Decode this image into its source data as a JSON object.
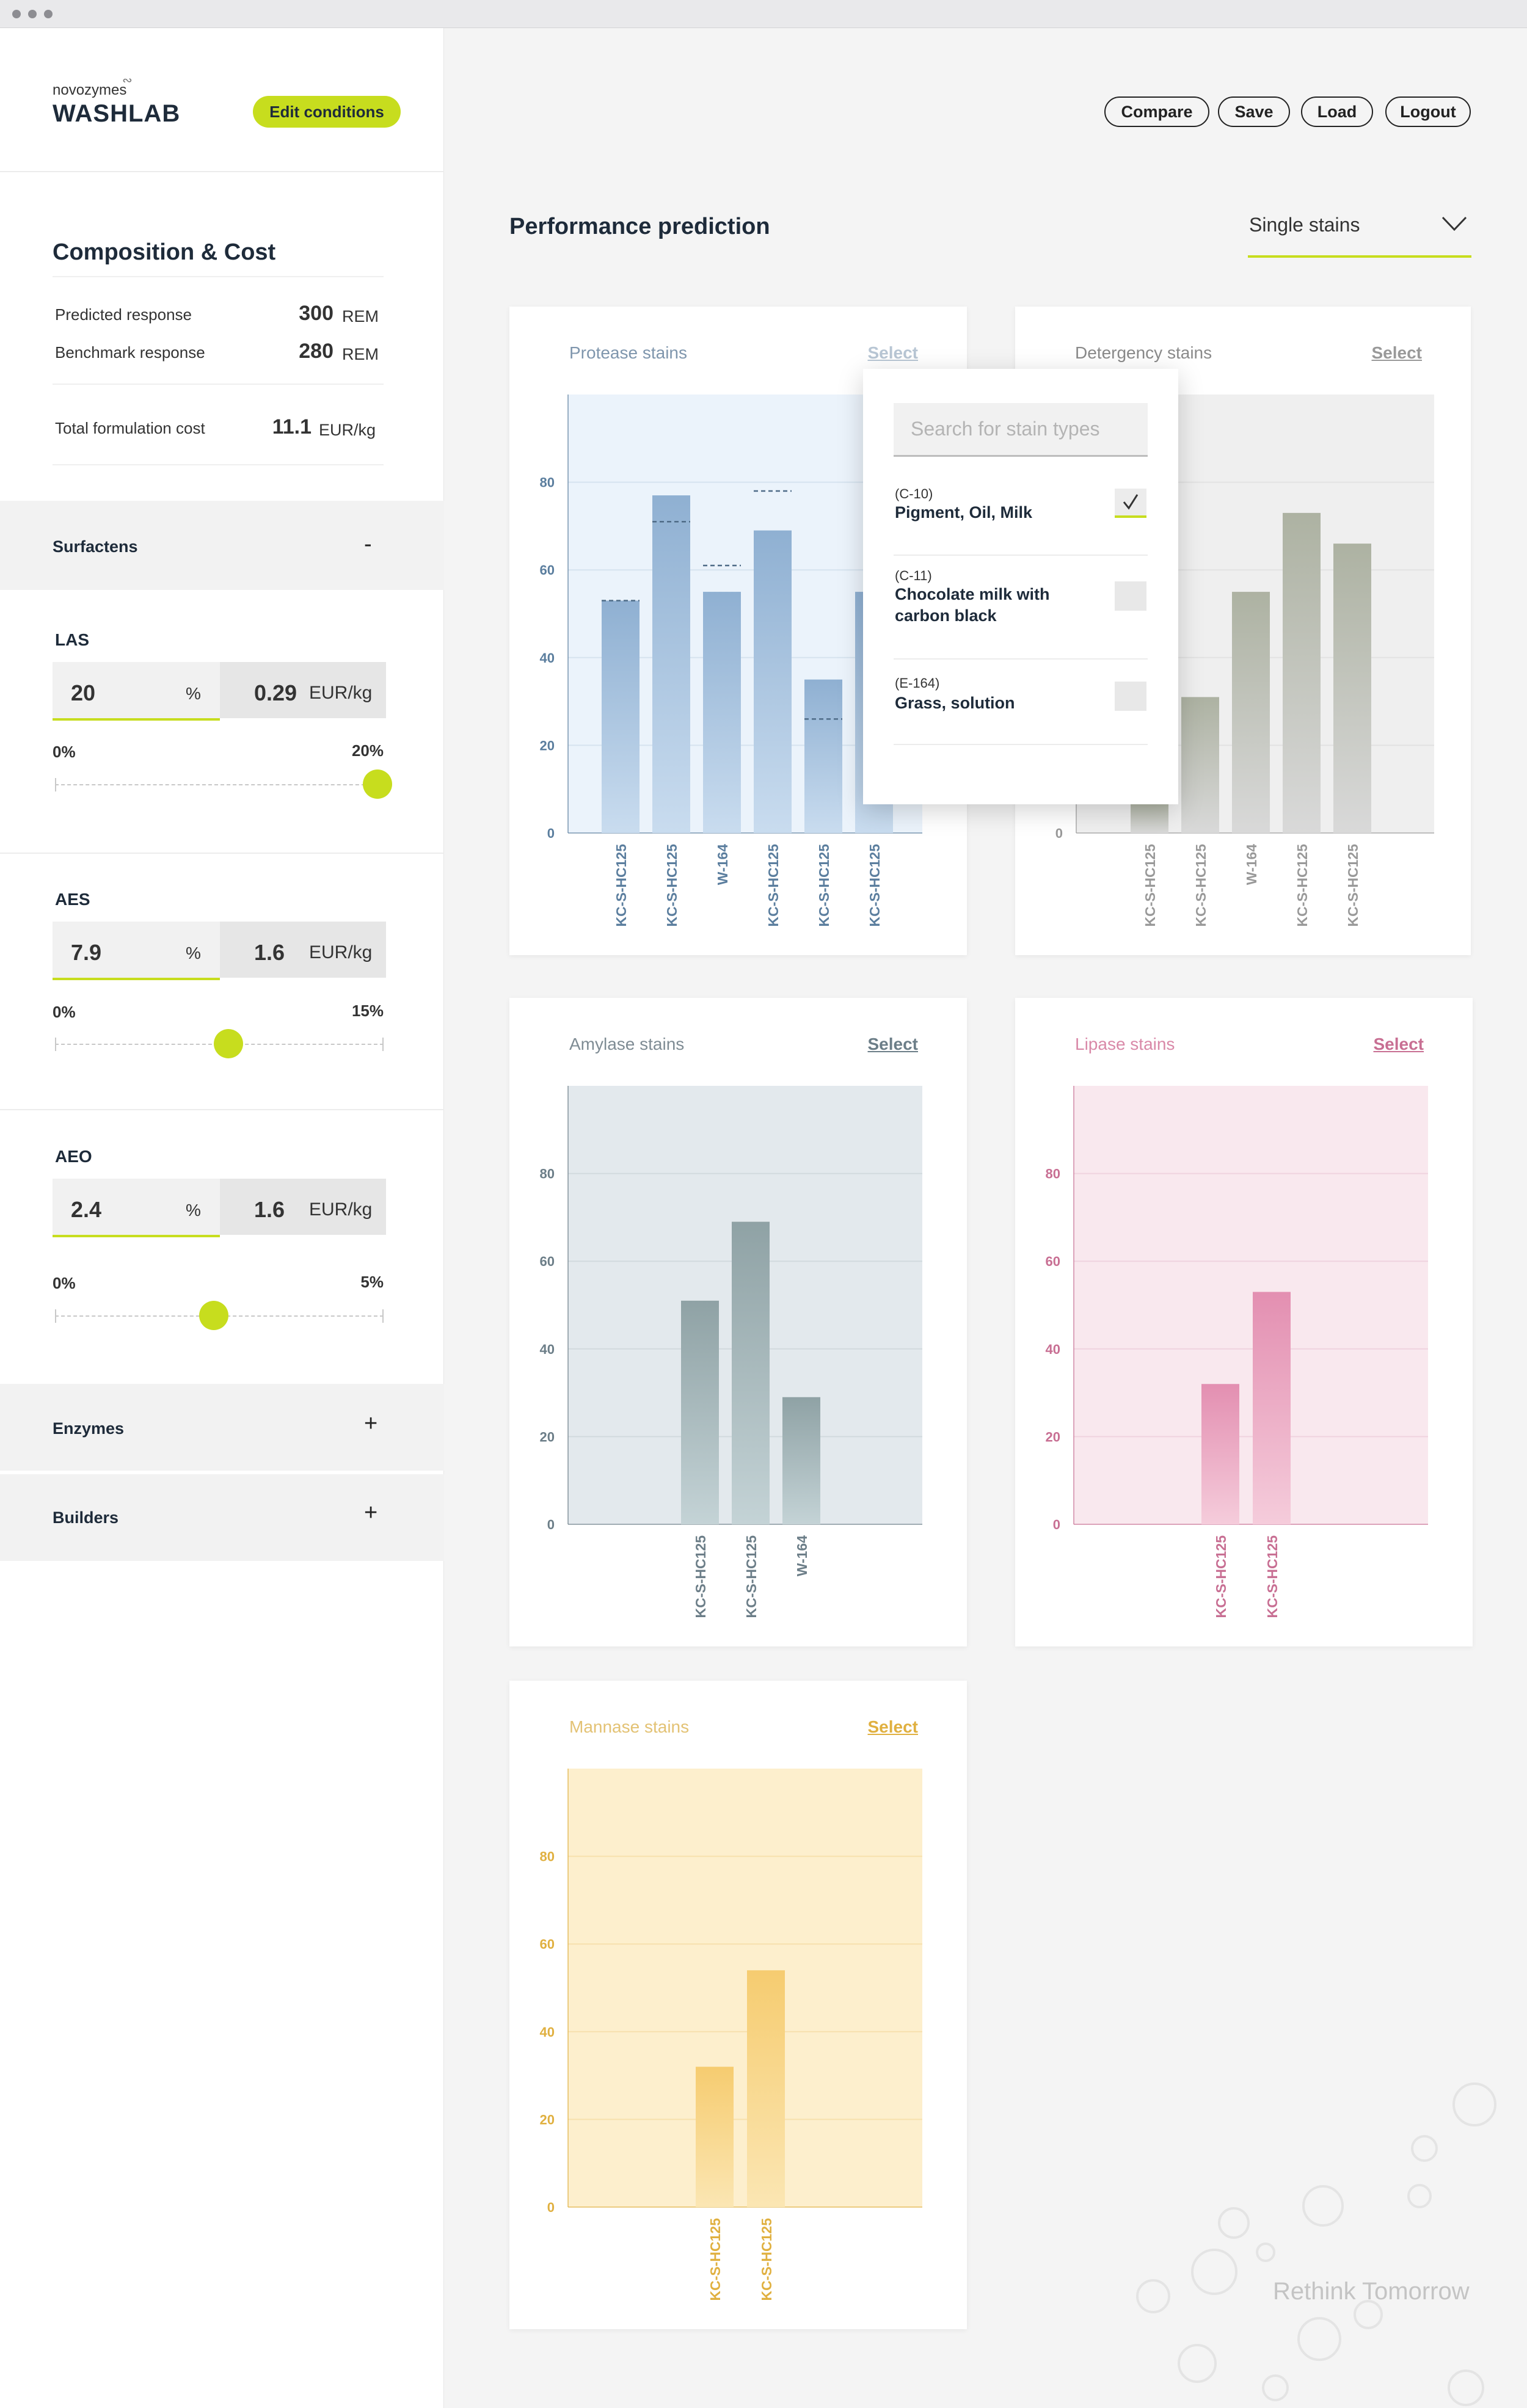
{
  "window": {
    "controls": [
      "close",
      "minimize",
      "maximize"
    ]
  },
  "brand": {
    "company": "novozymes",
    "product": "WASHLAB"
  },
  "sidebar": {
    "edit_button": "Edit conditions",
    "title": "Composition & Cost",
    "metrics": {
      "predicted": {
        "label": "Predicted response",
        "value": "300",
        "unit": "REM"
      },
      "benchmark": {
        "label": "Benchmark response",
        "value": "280",
        "unit": "REM"
      },
      "cost": {
        "label": "Total formulation cost",
        "value": "11.1",
        "unit": "EUR/kg"
      }
    },
    "groups": {
      "surfactants": {
        "label": "Surfactens",
        "toggle": "-"
      },
      "enzymes": {
        "label": "Enzymes",
        "toggle": "+"
      },
      "builders": {
        "label": "Builders",
        "toggle": "+"
      }
    },
    "components": {
      "las": {
        "name": "LAS",
        "percent": "20",
        "percent_sign": "%",
        "cost": "0.29",
        "cost_unit": "EUR/kg",
        "min": "0%",
        "max": "20%",
        "fraction": 1.0
      },
      "aes": {
        "name": "AES",
        "percent": "7.9",
        "percent_sign": "%",
        "cost": "1.6",
        "cost_unit": "EUR/kg",
        "min": "0%",
        "max": "15%",
        "fraction": 0.5267
      },
      "aeo": {
        "name": "AEO",
        "percent": "2.4",
        "percent_sign": "%",
        "cost": "1.6",
        "cost_unit": "EUR/kg",
        "min": "0%",
        "max": "5%",
        "fraction": 0.48
      }
    }
  },
  "header": {
    "buttons": {
      "compare": "Compare",
      "save": "Save",
      "load": "Load",
      "logout": "Logout"
    }
  },
  "main": {
    "title": "Performance prediction",
    "dropdown": {
      "selected": "Single stains"
    }
  },
  "popup": {
    "search_placeholder": "Search for stain types",
    "options": [
      {
        "code": "(C-10)",
        "name": "Pigment, Oil, Milk",
        "checked": true
      },
      {
        "code": "(C-11)",
        "name": "Chocolate milk with carbon black",
        "checked": false
      },
      {
        "code": "(E-164)",
        "name": "Grass, solution",
        "checked": false
      }
    ]
  },
  "footer": {
    "tagline": "Rethink Tomorrow"
  },
  "chart_data": [
    {
      "type": "bar",
      "title": "Protease stains",
      "select_label": "Select",
      "ylim": [
        0,
        100
      ],
      "yticks": [
        0,
        20,
        40,
        60,
        80
      ],
      "categories": [
        "KC-S-HC125",
        "KC-S-HC125",
        "W-164",
        "KC-S-HC125",
        "KC-S-HC125",
        "KC-S-HC125"
      ],
      "values": [
        53,
        77,
        55,
        69,
        35,
        55
      ],
      "benchmark": [
        53,
        71,
        61,
        78,
        26,
        null
      ],
      "colors": {
        "accent": "#5b7e9e",
        "bar_top": "#8fb0d2",
        "bar_bottom": "#c9dcef",
        "plot_bg": "#ebf3fb",
        "grid": "#d6e3ef",
        "title": "#7f96ad"
      }
    },
    {
      "type": "bar",
      "title": "Detergency stains",
      "select_label": "Select",
      "ylim": [
        0,
        100
      ],
      "yticks": [
        0,
        20,
        40,
        60,
        80
      ],
      "categories": [
        "KC-S-HC125",
        "KC-S-HC125",
        "W-164",
        "KC-S-HC125",
        "KC-S-HC125"
      ],
      "values": [
        7,
        31,
        55,
        73,
        66
      ],
      "colors": {
        "accent": "#999999",
        "bar_top": "#adb2a2",
        "bar_bottom": "#d9d9d9",
        "plot_bg": "#efefef",
        "grid": "#e2e2e2",
        "title": "#8a8a8a"
      }
    },
    {
      "type": "bar",
      "title": "Amylase stains",
      "select_label": "Select",
      "ylim": [
        0,
        100
      ],
      "yticks": [
        0,
        20,
        40,
        60,
        80
      ],
      "categories": [
        "KC-S-HC125",
        "KC-S-HC125",
        "W-164"
      ],
      "values": [
        51,
        69,
        29
      ],
      "colors": {
        "accent": "#6c7e88",
        "bar_top": "#8fa2a5",
        "bar_bottom": "#c4d3d6",
        "plot_bg": "#e3e9ed",
        "grid": "#d2dade",
        "title": "#7f8c94"
      }
    },
    {
      "type": "bar",
      "title": "Lipase stains",
      "select_label": "Select",
      "ylim": [
        0,
        100
      ],
      "yticks": [
        0,
        20,
        40,
        60,
        80
      ],
      "categories": [
        "KC-S-HC125",
        "KC-S-HC125"
      ],
      "values": [
        32,
        53
      ],
      "colors": {
        "accent": "#c86f93",
        "bar_top": "#e38fb1",
        "bar_bottom": "#f5ccdb",
        "plot_bg": "#f9e8ee",
        "grid": "#f0d3df",
        "title": "#d989a8"
      }
    },
    {
      "type": "bar",
      "title": "Mannase stains",
      "select_label": "Select",
      "ylim": [
        0,
        100
      ],
      "yticks": [
        0,
        20,
        40,
        60,
        80
      ],
      "categories": [
        "KC-S-HC125",
        "KC-S-HC125"
      ],
      "values": [
        32,
        54
      ],
      "colors": {
        "accent": "#e0b040",
        "bar_top": "#f6cc70",
        "bar_bottom": "#fbe6b3",
        "plot_bg": "#fdefcd",
        "grid": "#f7e0ad",
        "title": "#e3c274"
      }
    }
  ]
}
